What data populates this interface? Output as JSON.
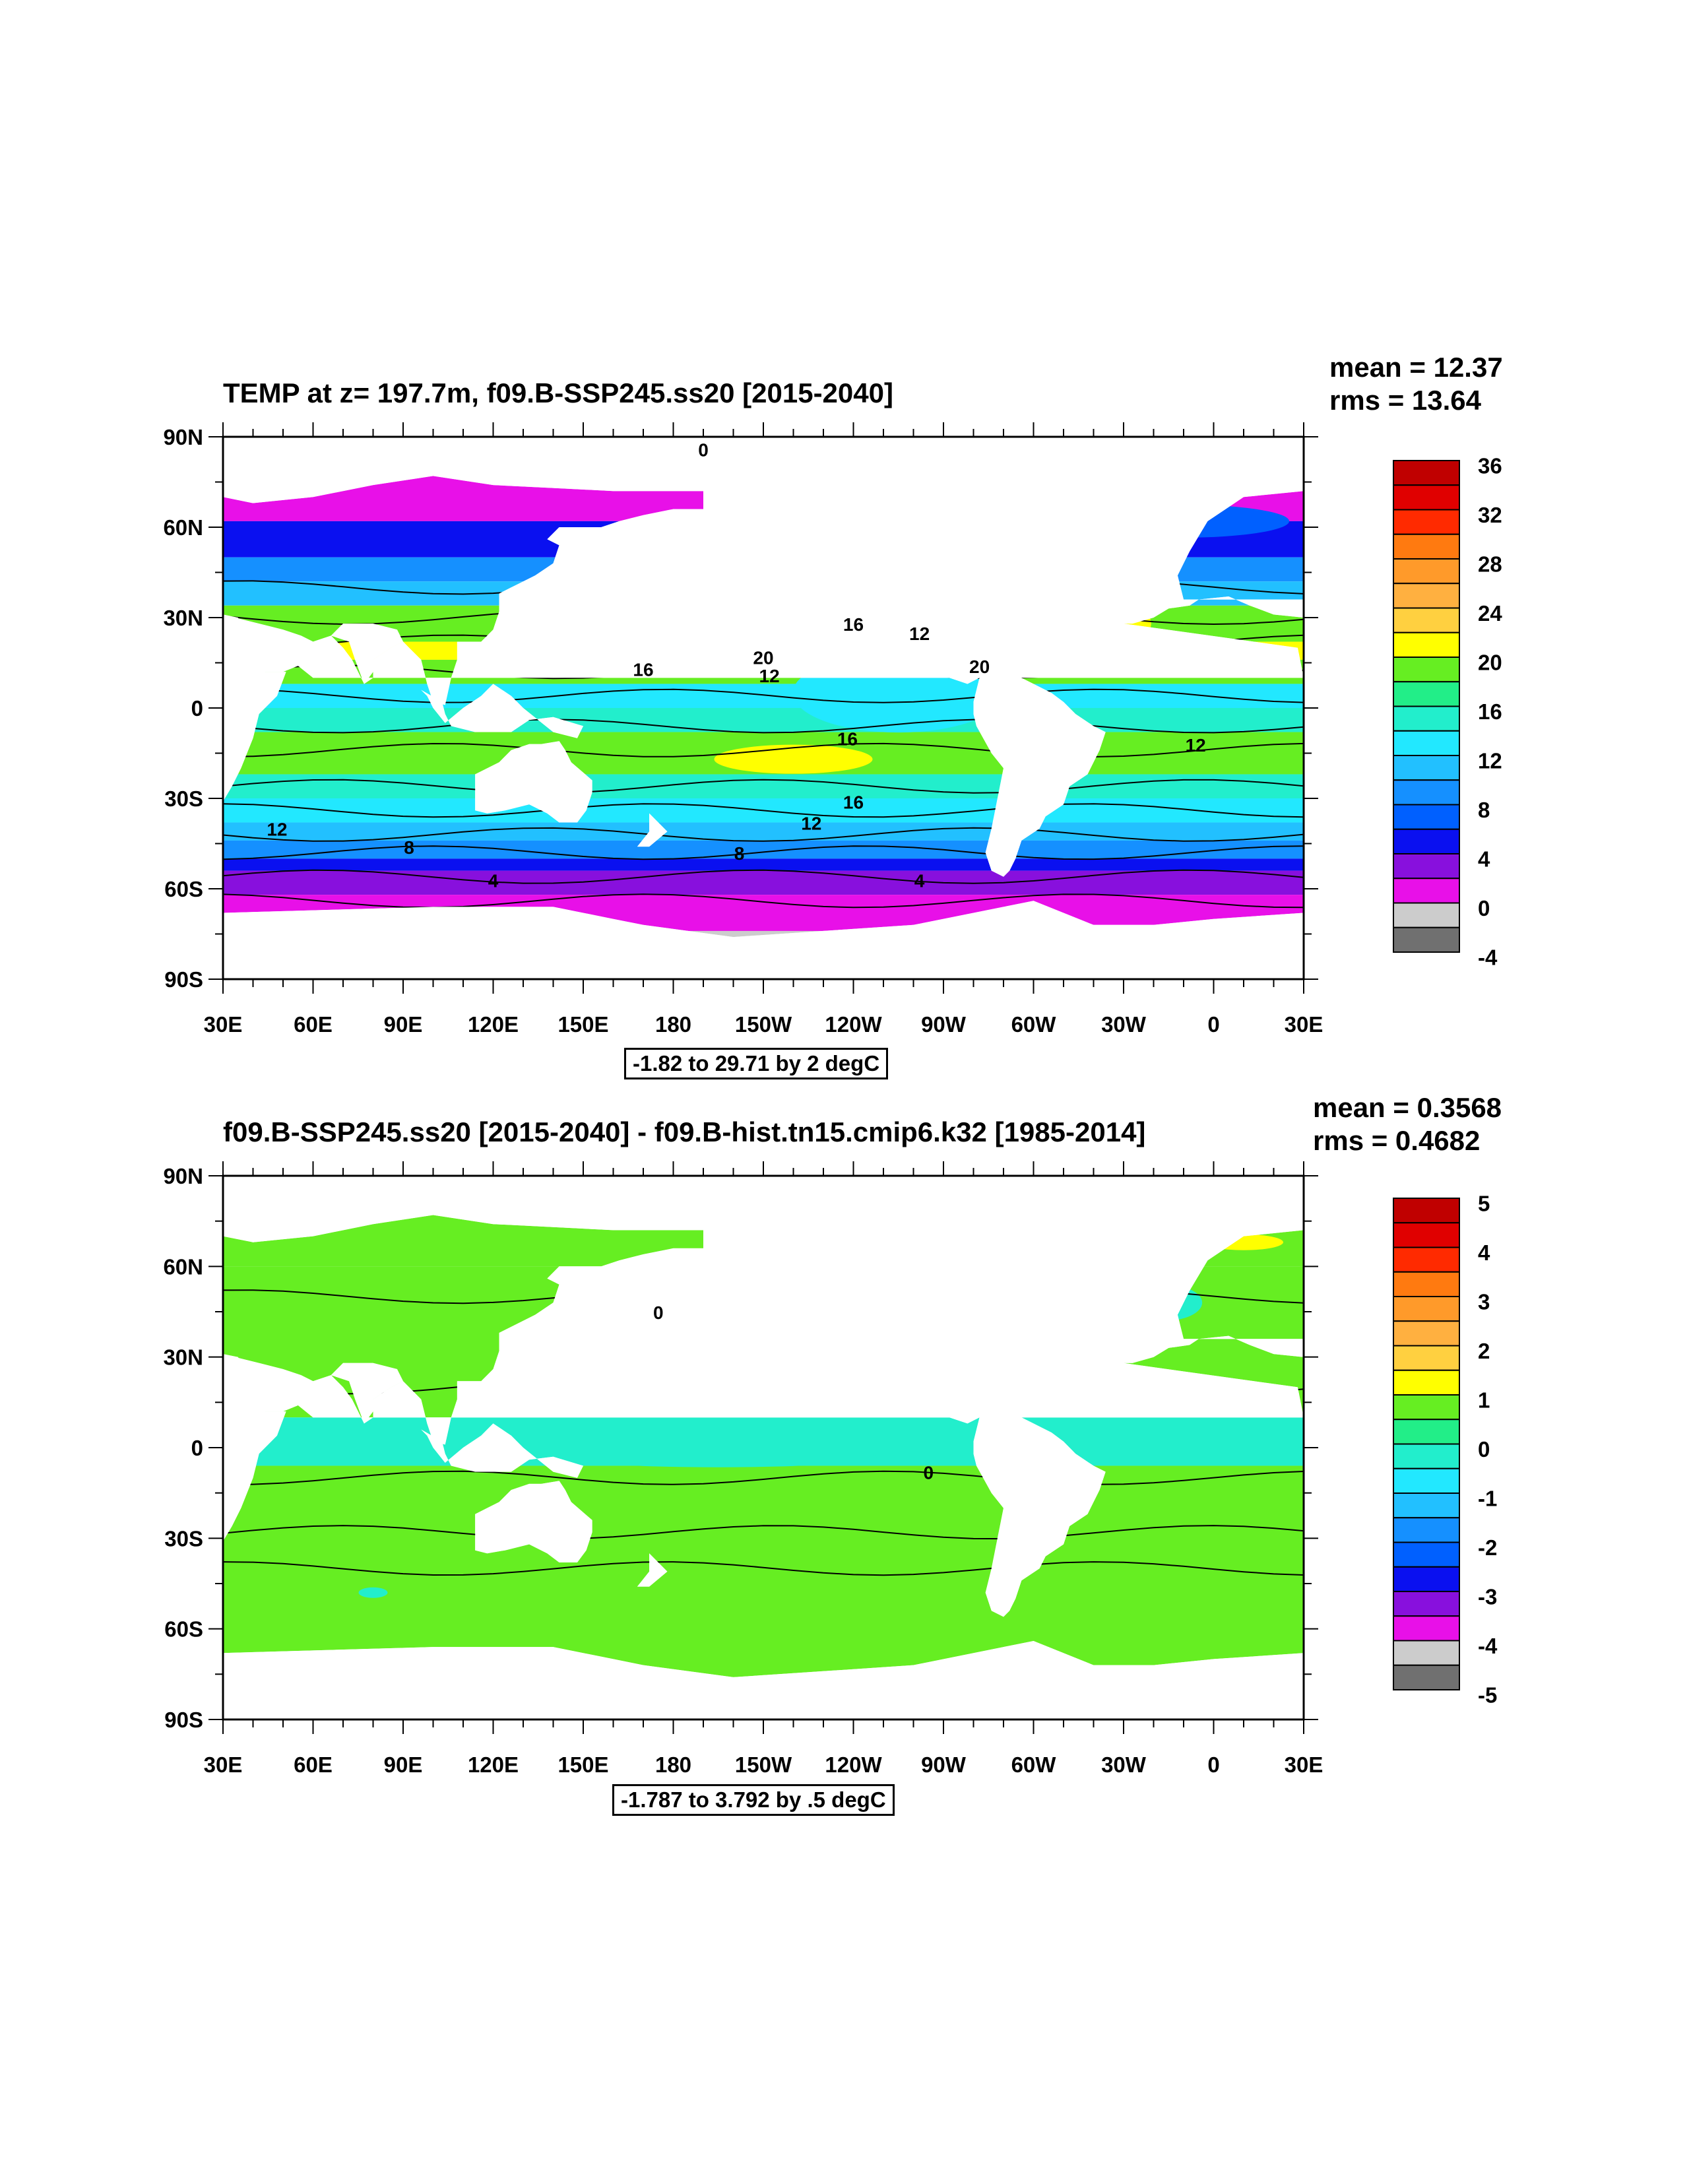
{
  "panels": [
    {
      "title": "TEMP at z= 197.7m, f09.B-SSP245.ss20 [2015-2040]",
      "mean": "mean = 12.37",
      "rms": "rms = 13.64",
      "range": "-1.82 to 29.71 by 2 degC",
      "colorbar_labels": [
        "36",
        "32",
        "28",
        "24",
        "20",
        "16",
        "12",
        "8",
        "4",
        "0",
        "-4"
      ],
      "colorbar_colors": [
        "#c00000",
        "#e00000",
        "#ff2a00",
        "#ff7a10",
        "#ff9a2a",
        "#ffb040",
        "#ffd040",
        "#ffff00",
        "#66ee22",
        "#22ee88",
        "#22eecc",
        "#22e8ff",
        "#22c0ff",
        "#1590ff",
        "#0060ff",
        "#0a10f0",
        "#8810dd",
        "#e810e8",
        "#cccccc",
        "#707070"
      ],
      "contour_labels": [
        "0",
        "16",
        "12",
        "20",
        "16",
        "12",
        "20",
        "16",
        "12",
        "16",
        "12",
        "12",
        "8",
        "8",
        "4",
        "4"
      ]
    },
    {
      "title": "f09.B-SSP245.ss20 [2015-2040] - f09.B-hist.tn15.cmip6.k32 [1985-2014]",
      "mean": "mean = 0.3568",
      "rms": "rms = 0.4682",
      "range": "-1.787 to 3.792 by .5 degC",
      "colorbar_labels": [
        "5",
        "4",
        "3",
        "2",
        "1",
        "0",
        "-1",
        "-2",
        "-3",
        "-4",
        "-5"
      ],
      "colorbar_colors": [
        "#c00000",
        "#e00000",
        "#ff2a00",
        "#ff7a10",
        "#ff9a2a",
        "#ffb040",
        "#ffd040",
        "#ffff00",
        "#66ee22",
        "#22ee88",
        "#22eecc",
        "#22e8ff",
        "#22c0ff",
        "#1590ff",
        "#0060ff",
        "#0a10f0",
        "#8810dd",
        "#e810e8",
        "#cccccc",
        "#707070"
      ],
      "contour_labels": [
        "0",
        "0"
      ]
    }
  ],
  "axes": {
    "lat_labels": [
      "90N",
      "60N",
      "30N",
      "0",
      "30S",
      "60S",
      "90S"
    ],
    "lon_labels": [
      "30E",
      "60E",
      "90E",
      "120E",
      "150E",
      "180",
      "150W",
      "120W",
      "90W",
      "60W",
      "30W",
      "0",
      "30E"
    ]
  },
  "colors": {
    "land": "#ffffff",
    "ice_gray": "#cccccc",
    "contour": "#000000"
  }
}
